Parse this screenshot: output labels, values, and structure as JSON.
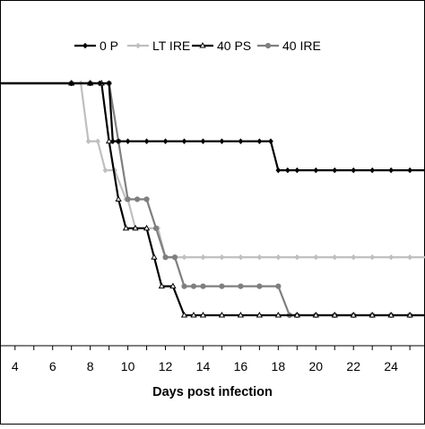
{
  "chart_data": {
    "type": "line",
    "title": "",
    "xlabel": "Days post infection",
    "ylabel": "",
    "xlim": [
      3.2,
      25.9
    ],
    "ylim": [
      0,
      100
    ],
    "x_ticks": [
      4,
      6,
      8,
      10,
      12,
      14,
      16,
      18,
      20,
      22,
      24
    ],
    "grid": false,
    "legend_position": "top",
    "series": [
      {
        "name": "0 P",
        "color": "#000000",
        "marker": "diamond",
        "points": [
          [
            3,
            100
          ],
          [
            7,
            100
          ],
          [
            8,
            100
          ],
          [
            8.5,
            100
          ],
          [
            9,
            100
          ],
          [
            9.2,
            80
          ],
          [
            9.5,
            80
          ],
          [
            10,
            80
          ],
          [
            11,
            80
          ],
          [
            12,
            80
          ],
          [
            13,
            80
          ],
          [
            14,
            80
          ],
          [
            15,
            80
          ],
          [
            16,
            80
          ],
          [
            17,
            80
          ],
          [
            17.6,
            80
          ],
          [
            18,
            70
          ],
          [
            18.5,
            70
          ],
          [
            19,
            70
          ],
          [
            20,
            70
          ],
          [
            21,
            70
          ],
          [
            22,
            70
          ],
          [
            23,
            70
          ],
          [
            24,
            70
          ],
          [
            25,
            70
          ],
          [
            25.9,
            70
          ]
        ]
      },
      {
        "name": "LT IRE",
        "color": "#bfbfbf",
        "marker": "diamond",
        "points": [
          [
            3,
            100
          ],
          [
            7,
            100
          ],
          [
            7.5,
            100
          ],
          [
            7.9,
            80
          ],
          [
            8.4,
            80
          ],
          [
            8.8,
            70
          ],
          [
            9.3,
            70
          ],
          [
            9.9,
            60
          ],
          [
            10,
            60
          ],
          [
            10.4,
            50
          ],
          [
            11,
            50
          ],
          [
            11.6,
            50
          ],
          [
            12,
            40
          ],
          [
            12.5,
            40
          ],
          [
            13,
            40
          ],
          [
            14,
            40
          ],
          [
            15,
            40
          ],
          [
            16,
            40
          ],
          [
            17,
            40
          ],
          [
            18,
            40
          ],
          [
            19,
            40
          ],
          [
            20,
            40
          ],
          [
            21,
            40
          ],
          [
            22,
            40
          ],
          [
            23,
            40
          ],
          [
            24,
            40
          ],
          [
            25,
            40
          ],
          [
            25.9,
            40
          ]
        ]
      },
      {
        "name": "40 PS",
        "color": "#000000",
        "marker": "triangle",
        "points": [
          [
            3,
            100
          ],
          [
            7,
            100
          ],
          [
            8,
            100
          ],
          [
            8.6,
            100
          ],
          [
            9,
            80
          ],
          [
            9.5,
            60
          ],
          [
            9.9,
            50
          ],
          [
            10.4,
            50
          ],
          [
            11,
            50
          ],
          [
            11.4,
            40
          ],
          [
            11.8,
            30
          ],
          [
            12.4,
            30
          ],
          [
            13,
            20
          ],
          [
            13.5,
            20
          ],
          [
            14,
            20
          ],
          [
            15,
            20
          ],
          [
            16,
            20
          ],
          [
            17,
            20
          ],
          [
            18,
            20
          ],
          [
            19,
            20
          ],
          [
            20,
            20
          ],
          [
            21,
            20
          ],
          [
            22,
            20
          ],
          [
            23,
            20
          ],
          [
            24,
            20
          ],
          [
            25,
            20
          ],
          [
            25.9,
            20
          ]
        ]
      },
      {
        "name": "40 IRE",
        "color": "#7f7f7f",
        "marker": "circle",
        "points": [
          [
            3,
            100
          ],
          [
            7,
            100
          ],
          [
            8,
            100
          ],
          [
            9,
            100
          ],
          [
            9.5,
            80
          ],
          [
            10,
            60
          ],
          [
            10.5,
            60
          ],
          [
            11,
            60
          ],
          [
            11.5,
            50
          ],
          [
            12,
            40
          ],
          [
            12.5,
            40
          ],
          [
            13,
            30
          ],
          [
            13.5,
            30
          ],
          [
            14,
            30
          ],
          [
            15,
            30
          ],
          [
            16,
            30
          ],
          [
            17,
            30
          ],
          [
            18,
            30
          ],
          [
            18.6,
            20
          ],
          [
            19,
            20
          ],
          [
            20,
            20
          ],
          [
            21,
            20
          ],
          [
            22,
            20
          ],
          [
            23,
            20
          ],
          [
            24,
            20
          ],
          [
            25,
            20
          ],
          [
            25.9,
            20
          ]
        ]
      }
    ]
  }
}
